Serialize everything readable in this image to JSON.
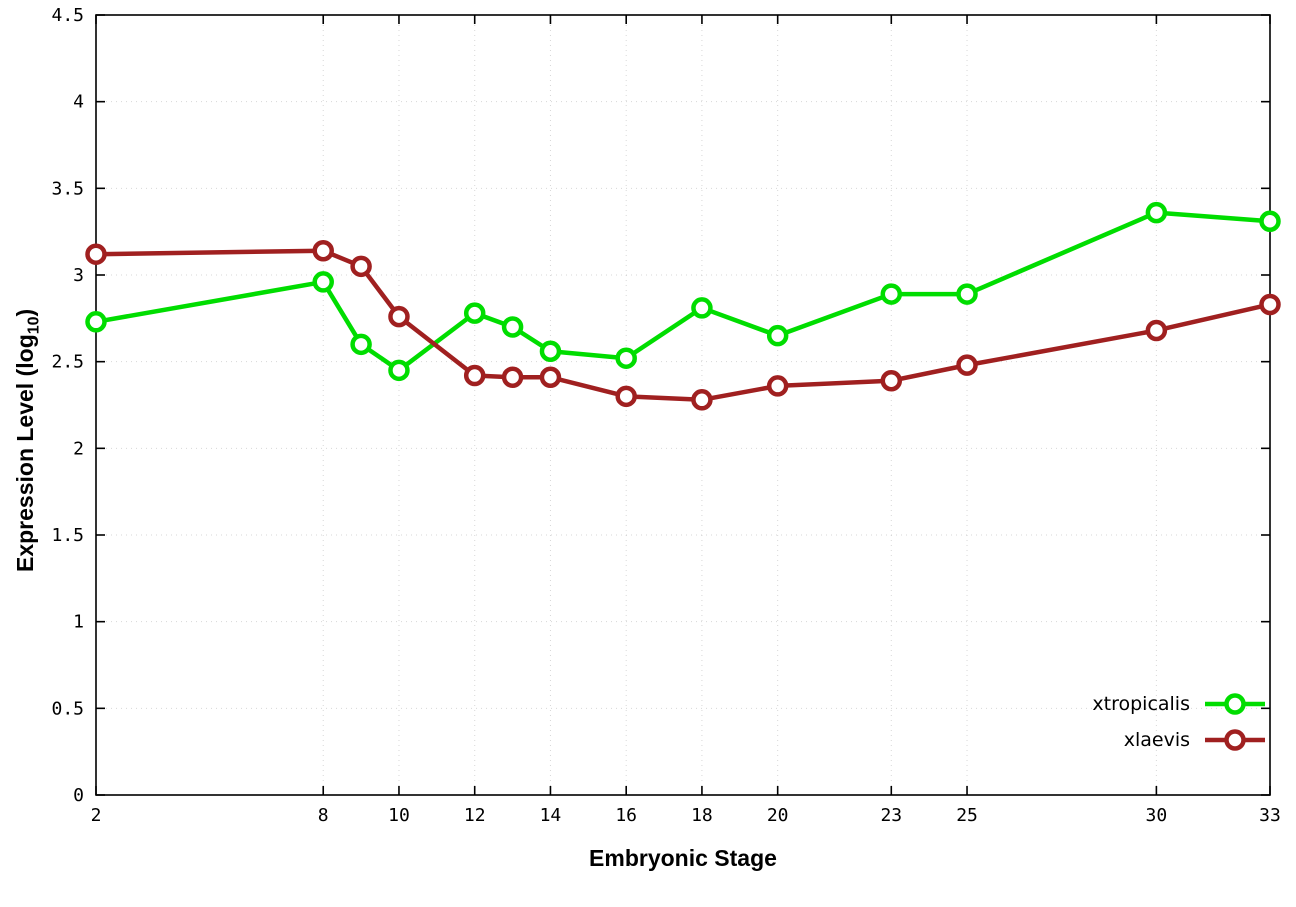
{
  "chart_data": {
    "type": "line",
    "title": "",
    "xlabel": "Embryonic Stage",
    "ylabel": "Expression Level (log10)",
    "ylabel_parts": {
      "prefix": "Expression Level (log",
      "sub": "10",
      "suffix": ")"
    },
    "xlim": [
      2,
      33
    ],
    "ylim": [
      0,
      4.5
    ],
    "grid": true,
    "legend_position": "bottom-right",
    "x": [
      2,
      8,
      9,
      10,
      12,
      13,
      14,
      16,
      18,
      20,
      23,
      25,
      30,
      33
    ],
    "series": [
      {
        "name": "xtropicalis",
        "color": "#00dd00",
        "values": [
          2.73,
          2.96,
          2.6,
          2.45,
          2.78,
          2.7,
          2.56,
          2.52,
          2.81,
          2.65,
          2.89,
          2.89,
          3.36,
          3.31
        ]
      },
      {
        "name": "xlaevis",
        "color": "#a02020",
        "values": [
          3.12,
          3.14,
          3.05,
          2.76,
          2.42,
          2.41,
          2.41,
          2.3,
          2.28,
          2.36,
          2.39,
          2.48,
          2.68,
          2.83
        ]
      }
    ],
    "x_ticks": {
      "values": [
        2,
        8,
        10,
        12,
        14,
        16,
        18,
        20,
        23,
        25,
        30,
        33
      ],
      "labels": [
        "2",
        "8",
        "10",
        "12",
        "14",
        "16",
        "18",
        "20",
        "23",
        "25",
        "30",
        "33"
      ]
    },
    "y_ticks": {
      "values": [
        0,
        0.5,
        1,
        1.5,
        2,
        2.5,
        3,
        3.5,
        4,
        4.5
      ],
      "labels": [
        "0",
        "0.5",
        "1",
        "1.5",
        "2",
        "2.5",
        "3",
        "3.5",
        "4",
        "4.5"
      ]
    }
  }
}
